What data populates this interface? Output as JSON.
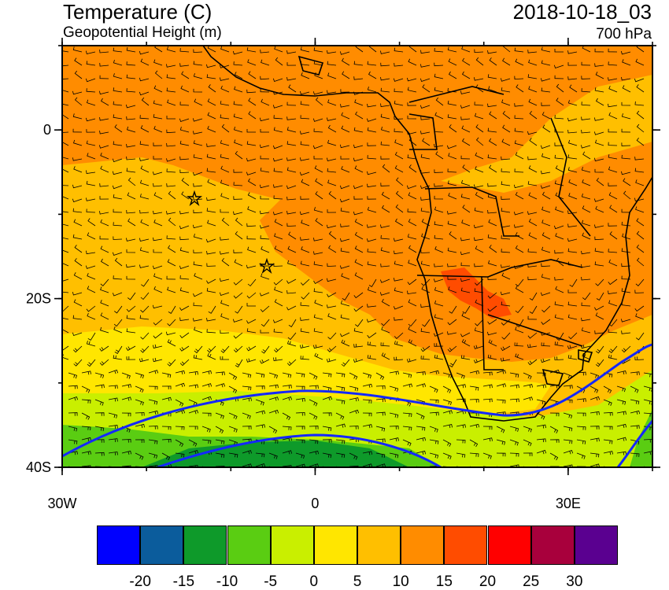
{
  "header": {
    "title_left": "Temperature (C)",
    "subtitle_left": "Geopotential Height (m)",
    "title_right": "2018-10-18_03",
    "subtitle_right": "700 hPa"
  },
  "map": {
    "lon_range": [
      -30,
      40
    ],
    "lat_range": [
      -40,
      10
    ],
    "lon_ticks": [
      {
        "value": -30,
        "label": "30W"
      },
      {
        "value": 0,
        "label": "0"
      },
      {
        "value": 30,
        "label": "30E"
      }
    ],
    "lat_ticks": [
      {
        "value": 0,
        "label": "0"
      },
      {
        "value": -20,
        "label": "20S"
      },
      {
        "value": -40,
        "label": "40S"
      }
    ]
  },
  "colorbar": {
    "colors": [
      "#0000ff",
      "#0b5c9c",
      "#0e9a2a",
      "#5acd12",
      "#c9ef00",
      "#ffe600",
      "#ffbf00",
      "#ff8c00",
      "#ff4c00",
      "#ff0000",
      "#a8003c",
      "#5a0090"
    ],
    "labels": [
      "-20",
      "-15",
      "-10",
      "-5",
      "0",
      "5",
      "10",
      "15",
      "20",
      "25",
      "30"
    ]
  },
  "colors": {
    "contour": "#1428ff",
    "coast": "#000000"
  }
}
